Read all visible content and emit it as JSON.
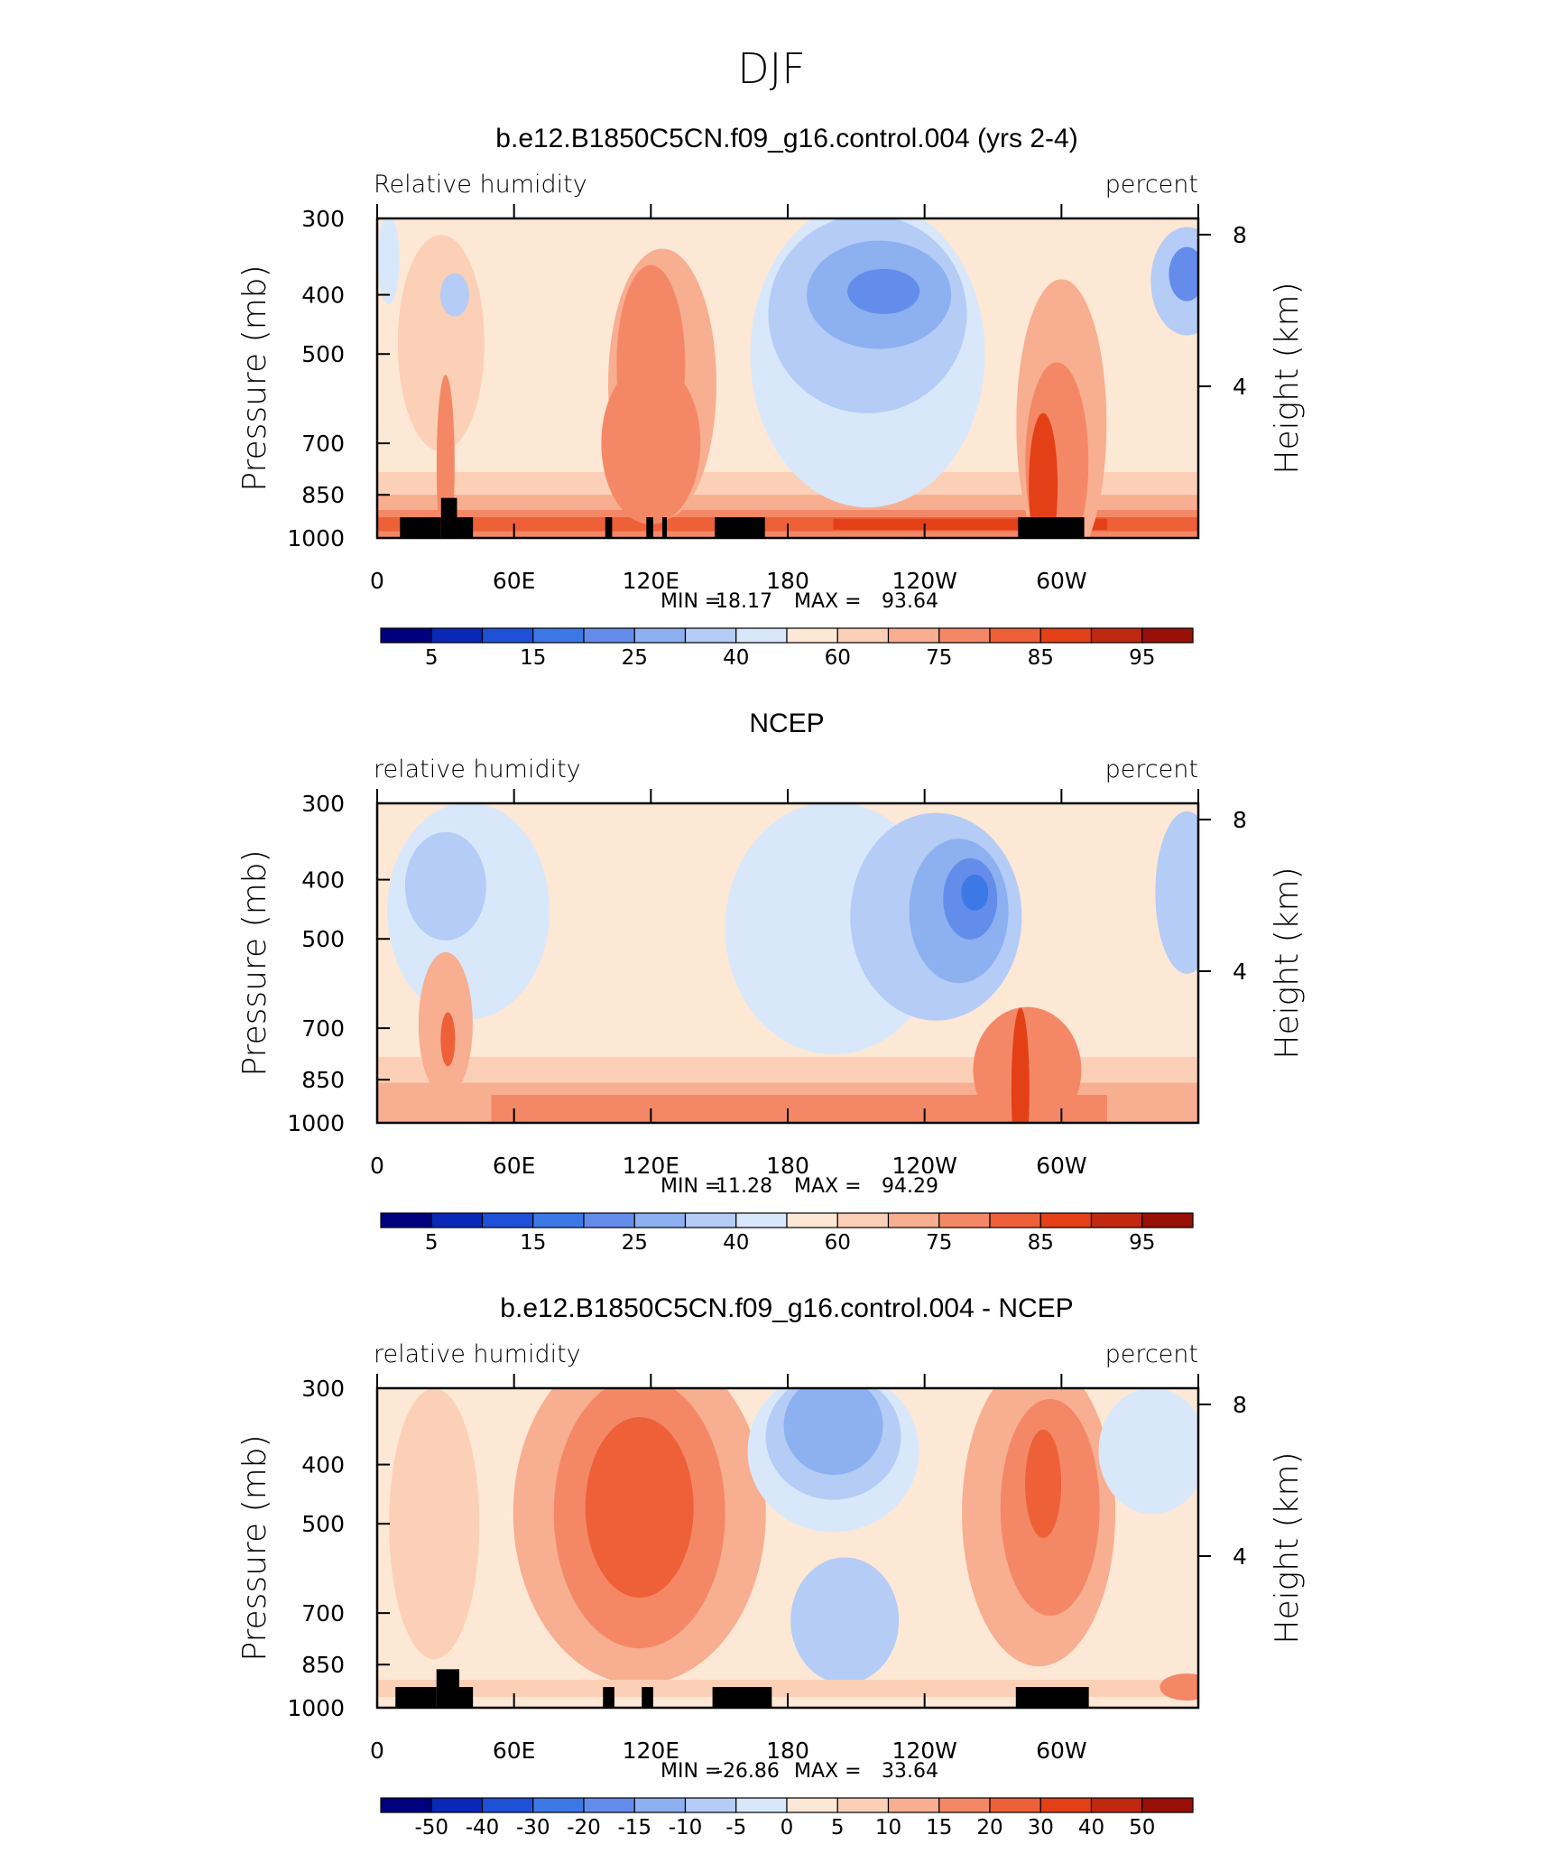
{
  "figure_title": "DJF",
  "chart_data": [
    {
      "type": "heatmap",
      "title": "b.e12.B1850C5CN.f09_g16.control.004 (yrs 2-4)",
      "subtitle_left": "Relative humidity",
      "subtitle_right": "percent",
      "ylabel": "Pressure (mb)",
      "ylabel_right": "Height (km)",
      "y_ticks": [
        300,
        400,
        500,
        700,
        850,
        1000
      ],
      "y_ticks_right": [
        4,
        8
      ],
      "x_tick_labels": [
        "0",
        "60E",
        "120E",
        "180",
        "120W",
        "60W"
      ],
      "xlim": [
        0,
        360
      ],
      "ylim": [
        1000,
        300
      ],
      "grid": false,
      "legend": "bottom colorbar",
      "min_label": "MIN =",
      "min_value": "18.17",
      "max_label": "MAX =",
      "max_value": "93.64",
      "colorbar_labels": [
        "5",
        "15",
        "25",
        "40",
        "60",
        "75",
        "85",
        "95"
      ]
    },
    {
      "type": "heatmap",
      "title": "NCEP",
      "subtitle_left": "relative humidity",
      "subtitle_right": "percent",
      "ylabel": "Pressure (mb)",
      "ylabel_right": "Height (km)",
      "y_ticks": [
        300,
        400,
        500,
        700,
        850,
        1000
      ],
      "y_ticks_right": [
        4,
        8
      ],
      "x_tick_labels": [
        "0",
        "60E",
        "120E",
        "180",
        "120W",
        "60W"
      ],
      "xlim": [
        0,
        360
      ],
      "ylim": [
        1000,
        300
      ],
      "grid": false,
      "legend": "bottom colorbar",
      "min_label": "MIN =",
      "min_value": "11.28",
      "max_label": "MAX =",
      "max_value": "94.29",
      "colorbar_labels": [
        "5",
        "15",
        "25",
        "40",
        "60",
        "75",
        "85",
        "95"
      ]
    },
    {
      "type": "heatmap",
      "title": "b.e12.B1850C5CN.f09_g16.control.004 - NCEP",
      "subtitle_left": "relative humidity",
      "subtitle_right": "percent",
      "ylabel": "Pressure (mb)",
      "ylabel_right": "Height (km)",
      "y_ticks": [
        300,
        400,
        500,
        700,
        850,
        1000
      ],
      "y_ticks_right": [
        4,
        8
      ],
      "x_tick_labels": [
        "0",
        "60E",
        "120E",
        "180",
        "120W",
        "60W"
      ],
      "xlim": [
        0,
        360
      ],
      "ylim": [
        1000,
        300
      ],
      "grid": false,
      "legend": "bottom colorbar",
      "min_label": "MIN =",
      "min_value": "-26.86",
      "max_label": "MAX =",
      "max_value": "33.64",
      "colorbar_labels": [
        "-50",
        "-40",
        "-30",
        "-20",
        "-15",
        "-10",
        "-5",
        "0",
        "5",
        "10",
        "15",
        "20",
        "30",
        "40",
        "50"
      ]
    }
  ],
  "colorbar_colors": [
    "#00007f",
    "#0a28b8",
    "#1e50d8",
    "#3c78e6",
    "#648cea",
    "#8cb0f0",
    "#b4ccf6",
    "#d8e8fa",
    "#fde8d6",
    "#fcd0b6",
    "#f8ae90",
    "#f48866",
    "#ee6038",
    "#e44018",
    "#c02810",
    "#981008"
  ]
}
